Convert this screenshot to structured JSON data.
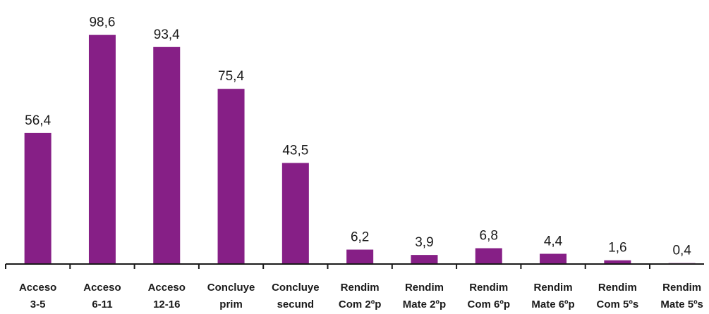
{
  "chart_data": {
    "type": "bar",
    "categories": [
      [
        "Acceso",
        "3-5"
      ],
      [
        "Acceso",
        "6-11"
      ],
      [
        "Acceso",
        "12-16"
      ],
      [
        "Concluye",
        "prim"
      ],
      [
        "Concluye",
        "secund"
      ],
      [
        "Rendim",
        "Com 2ºp"
      ],
      [
        "Rendim",
        "Mate 2ºp"
      ],
      [
        "Rendim",
        "Com 6ºp"
      ],
      [
        "Rendim",
        "Mate 6ºp"
      ],
      [
        "Rendim",
        "Com 5ºs"
      ],
      [
        "Rendim",
        "Mate 5ºs"
      ]
    ],
    "values": [
      56.4,
      98.6,
      93.4,
      75.4,
      43.5,
      6.2,
      3.9,
      6.8,
      4.4,
      1.6,
      0.4
    ],
    "value_labels": [
      "56,4",
      "98,6",
      "93,4",
      "75,4",
      "43,5",
      "6,2",
      "3,9",
      "6,8",
      "4,4",
      "1,6",
      "0,4"
    ],
    "title": "",
    "xlabel": "",
    "ylabel": "",
    "ylim": [
      0,
      100
    ],
    "grid": false,
    "legend": "none",
    "bar_color": "#861F86",
    "axis_color": "#1a1a1a"
  }
}
